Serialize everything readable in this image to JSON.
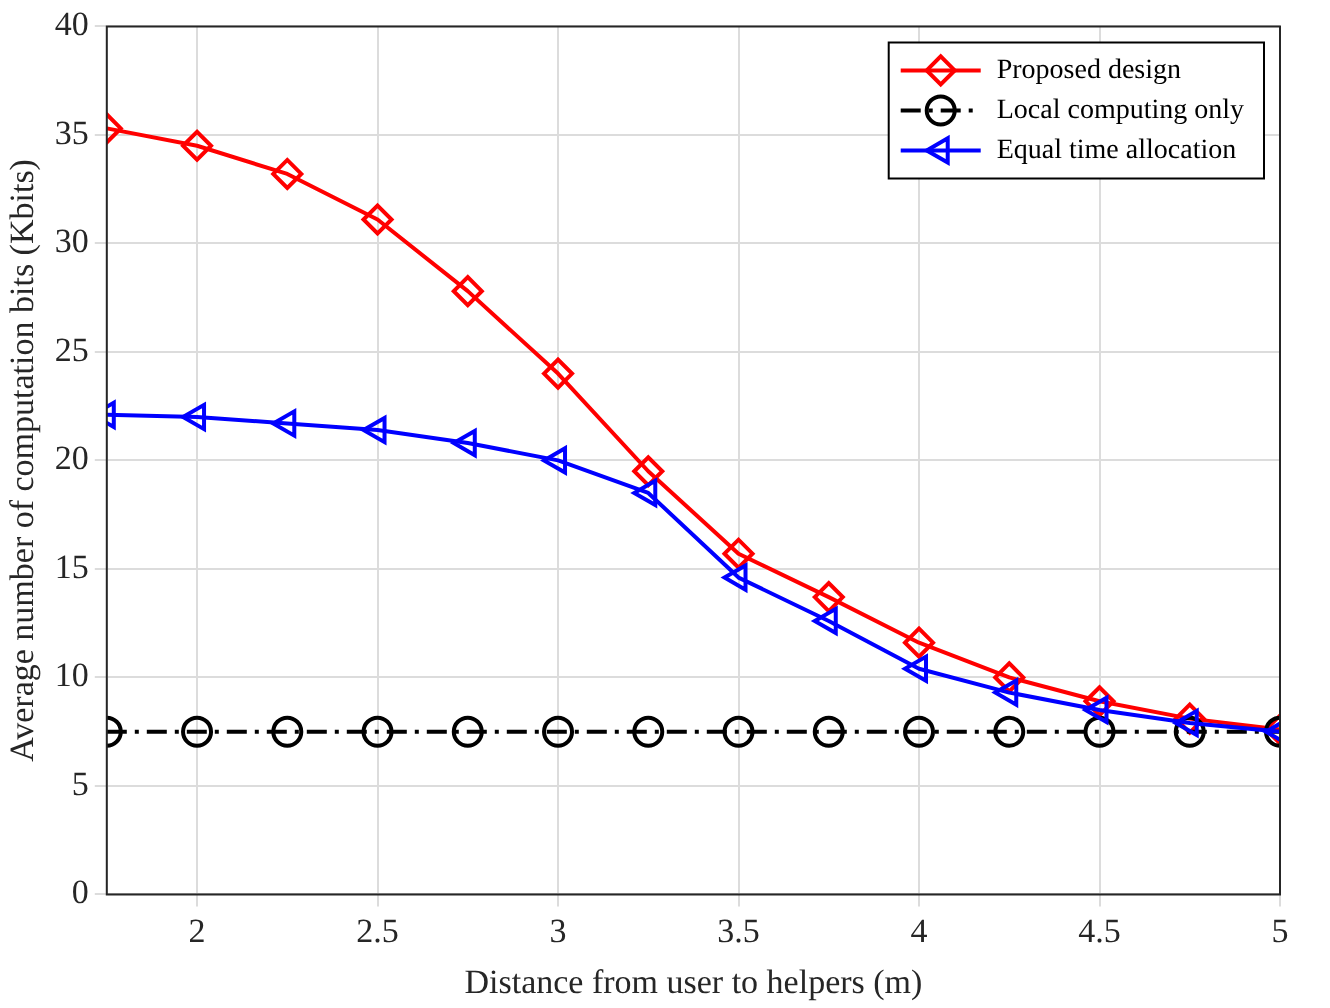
{
  "chart_data": {
    "type": "line",
    "xlabel": "Distance from user to helpers (m)",
    "ylabel": "Average number of computation bits (Kbits)",
    "x": [
      1.75,
      2,
      2.25,
      2.5,
      2.75,
      3,
      3.25,
      3.5,
      3.75,
      4,
      4.25,
      4.5,
      4.75,
      5
    ],
    "xlim": [
      1.75,
      5
    ],
    "xticks": [
      2,
      2.5,
      3,
      3.5,
      4,
      4.5,
      5
    ],
    "ylim": [
      0,
      40
    ],
    "yticks": [
      0,
      5,
      10,
      15,
      20,
      25,
      30,
      35,
      40
    ],
    "grid": true,
    "legend": "top right",
    "series": [
      {
        "name": "Proposed design",
        "color": "#ff0000",
        "marker": "diamond",
        "line_style": "solid",
        "values": [
          35.3,
          34.5,
          33.2,
          31.1,
          27.8,
          24.0,
          19.5,
          15.7,
          13.7,
          11.6,
          10.0,
          8.9,
          8.1,
          7.6
        ]
      },
      {
        "name": "Local computing only",
        "color": "#000000",
        "marker": "circle",
        "line_style": "dashed",
        "values": [
          7.5,
          7.5,
          7.5,
          7.5,
          7.5,
          7.5,
          7.5,
          7.5,
          7.5,
          7.5,
          7.5,
          7.5,
          7.5,
          7.5
        ]
      },
      {
        "name": "Equal time allocation",
        "color": "#0000ff",
        "marker": "triangle",
        "line_style": "solid",
        "values": [
          22.1,
          22.0,
          21.7,
          21.4,
          20.8,
          20.0,
          18.5,
          14.6,
          12.6,
          10.4,
          9.3,
          8.5,
          7.9,
          7.5
        ]
      }
    ]
  }
}
